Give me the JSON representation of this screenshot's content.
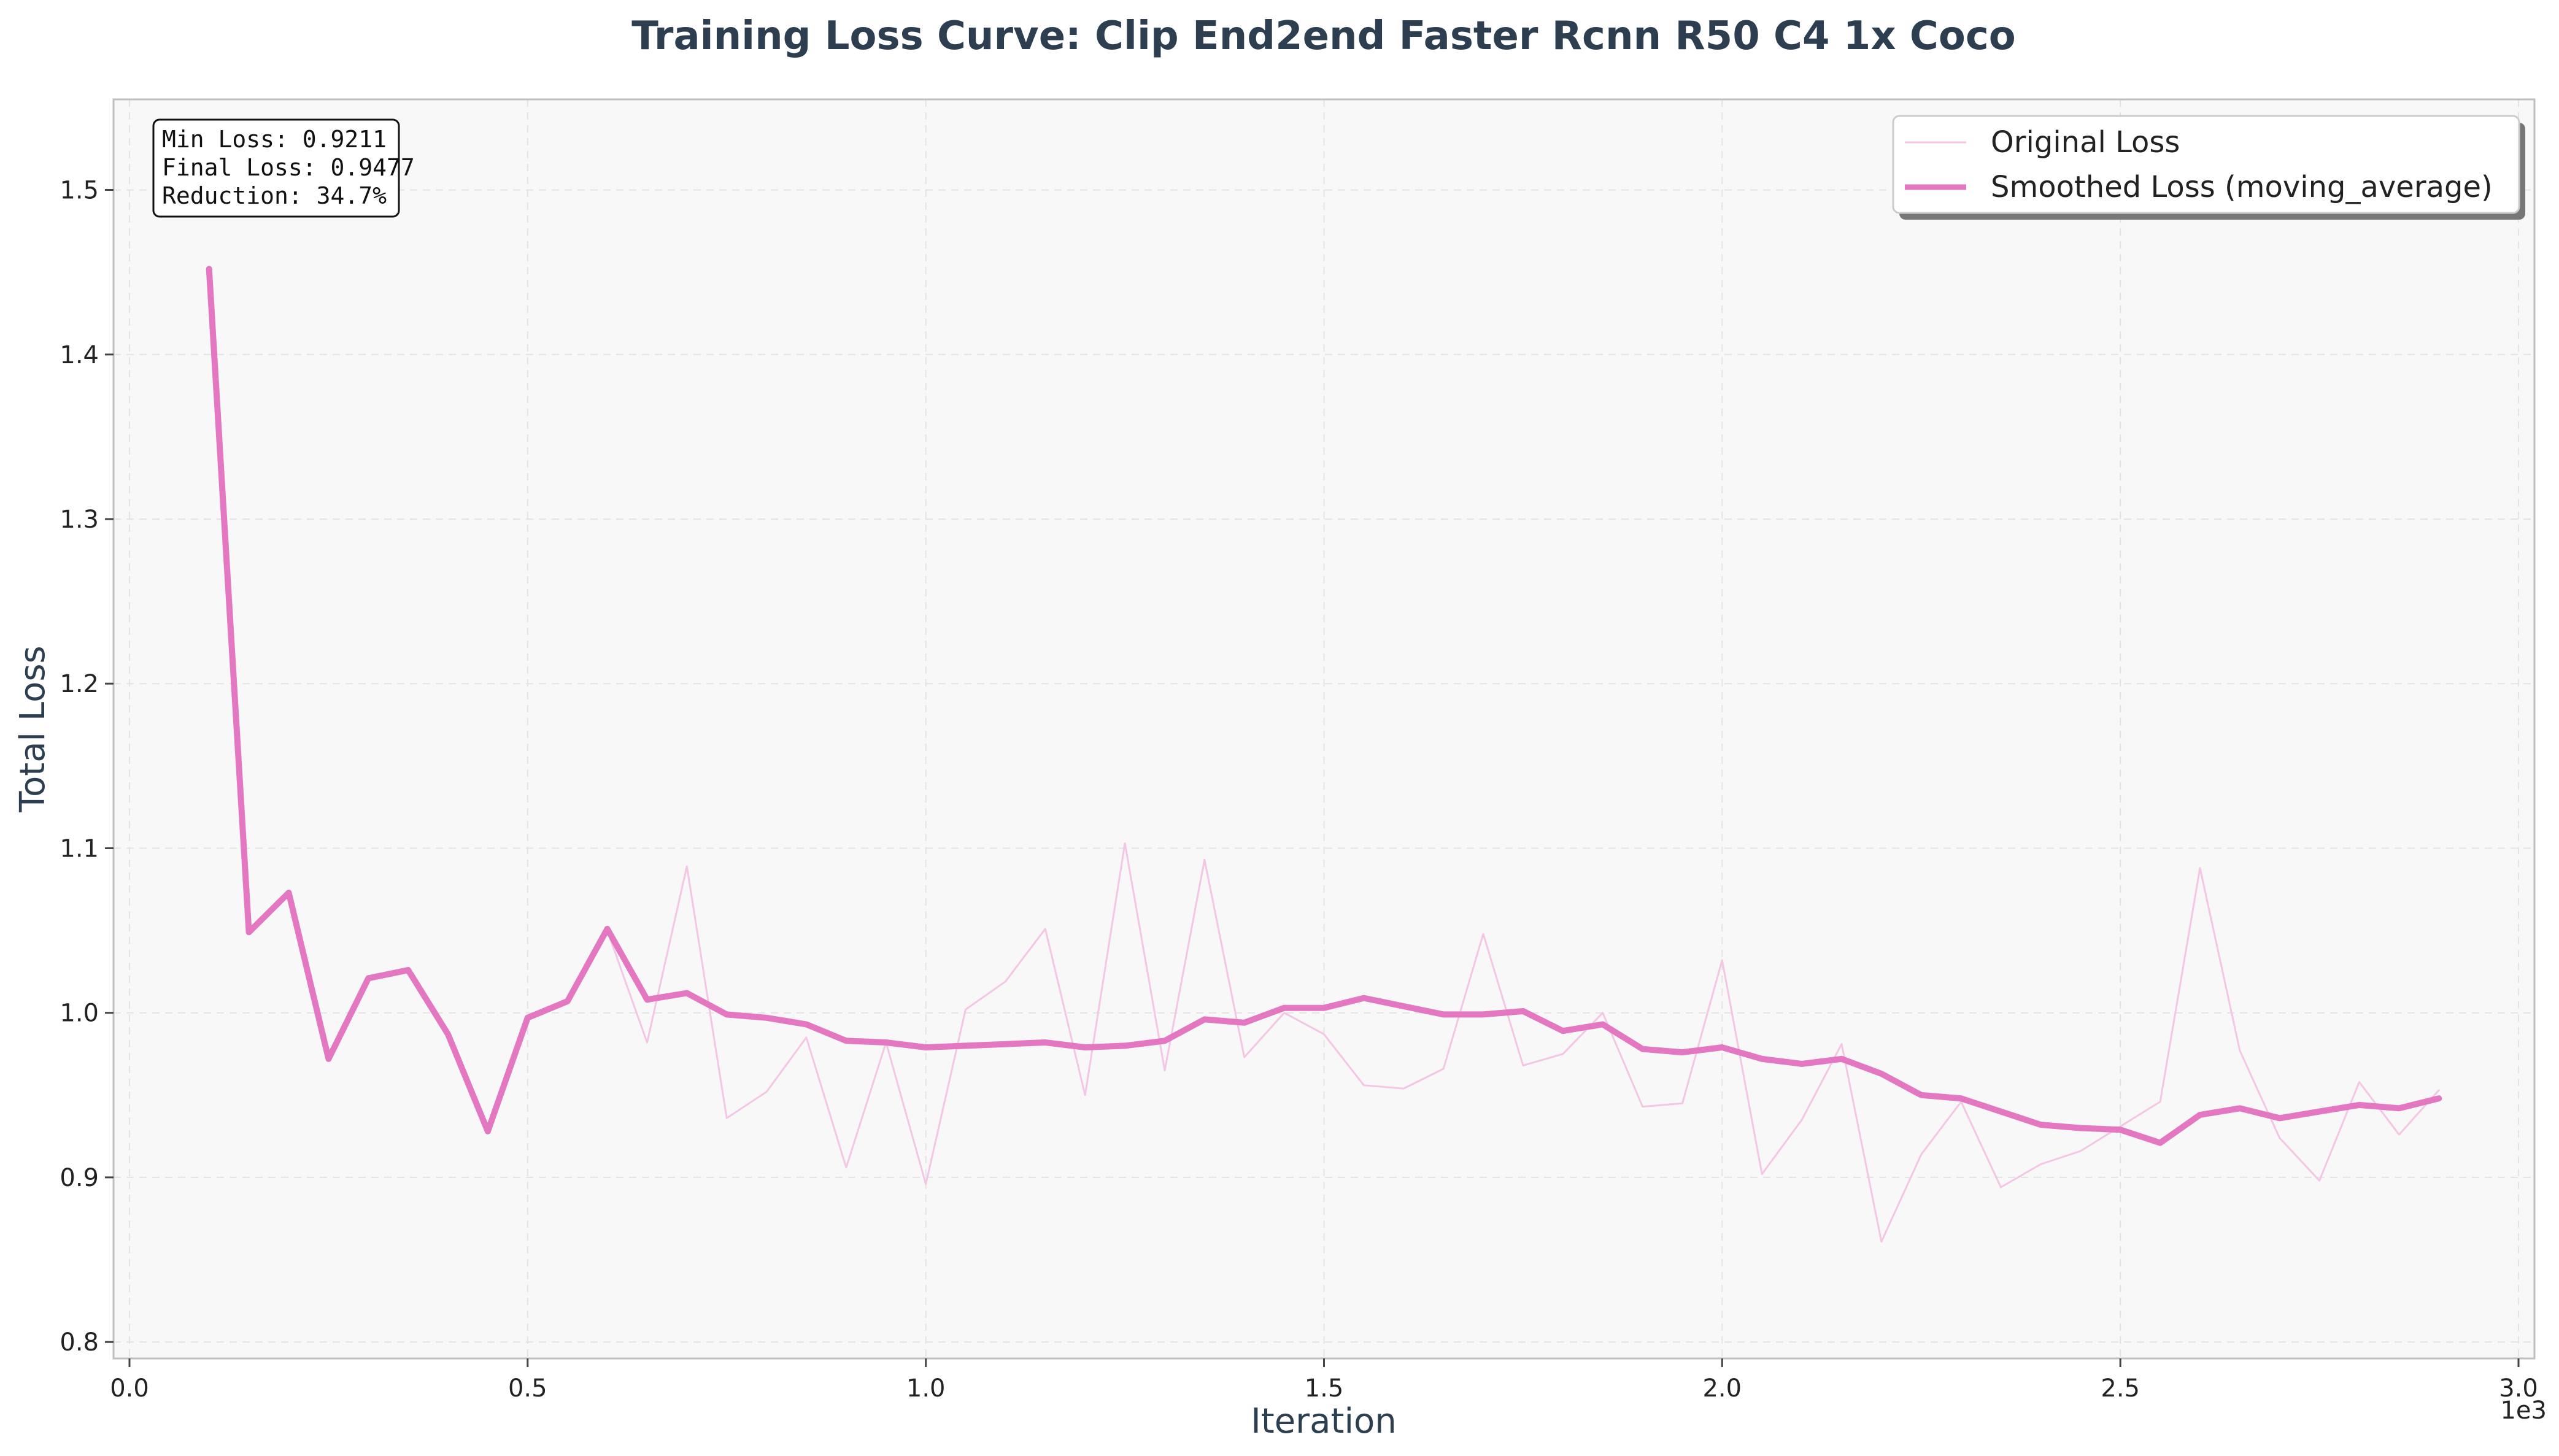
{
  "chart_data": {
    "type": "line",
    "title": "Training Loss Curve: Clip End2end Faster Rcnn R50 C4 1x Coco",
    "xlabel": "Iteration",
    "ylabel": "Total Loss",
    "x_offset_label": "1e3",
    "xlim": [
      -20,
      3020
    ],
    "ylim": [
      0.79,
      1.555
    ],
    "x_ticks": [
      0,
      500,
      1000,
      1500,
      2000,
      2500,
      3000
    ],
    "x_tick_labels": [
      "0.0",
      "0.5",
      "1.0",
      "1.5",
      "2.0",
      "2.5",
      "3.0"
    ],
    "y_ticks": [
      0.8,
      0.9,
      1.0,
      1.1,
      1.2,
      1.3,
      1.4,
      1.5
    ],
    "y_tick_labels": [
      "0.8",
      "0.9",
      "1.0",
      "1.1",
      "1.2",
      "1.3",
      "1.4",
      "1.5"
    ],
    "grid": true,
    "legend_position": "top-right",
    "annotations": [
      "Min Loss: 0.9211",
      "Final Loss: 0.9477",
      "Reduction: 34.7%"
    ],
    "x": [
      100,
      150,
      200,
      250,
      300,
      350,
      400,
      450,
      500,
      550,
      600,
      650,
      700,
      750,
      800,
      850,
      900,
      950,
      1000,
      1050,
      1100,
      1150,
      1200,
      1250,
      1300,
      1350,
      1400,
      1450,
      1500,
      1550,
      1600,
      1650,
      1700,
      1750,
      1800,
      1850,
      1900,
      1950,
      2000,
      2050,
      2100,
      2150,
      2200,
      2250,
      2300,
      2350,
      2400,
      2450,
      2500,
      2550,
      2600,
      2650,
      2700,
      2750,
      2800,
      2850,
      2900
    ],
    "series": [
      {
        "name": "Original Loss",
        "color": "#f3c6e3",
        "values": [
          1.452,
          1.049,
          1.073,
          0.972,
          1.021,
          1.026,
          0.987,
          0.928,
          0.997,
          1.007,
          1.05,
          0.982,
          1.089,
          0.936,
          0.952,
          0.985,
          0.906,
          0.982,
          0.896,
          1.002,
          1.019,
          1.051,
          0.95,
          1.103,
          0.965,
          1.093,
          0.973,
          1.0,
          0.987,
          0.956,
          0.954,
          0.966,
          1.048,
          0.968,
          0.975,
          1.0,
          0.943,
          0.945,
          1.032,
          0.902,
          0.935,
          0.981,
          0.861,
          0.914,
          0.946,
          0.894,
          0.908,
          0.916,
          0.931,
          0.946,
          1.088,
          0.977,
          0.924,
          0.898,
          0.958,
          0.926,
          0.953
        ]
      },
      {
        "name": "Smoothed Loss (moving_average)",
        "color": "#e377c2",
        "values": [
          1.452,
          1.049,
          1.073,
          0.972,
          1.021,
          1.026,
          0.987,
          0.928,
          0.997,
          1.007,
          1.051,
          1.008,
          1.012,
          0.999,
          0.997,
          0.993,
          0.983,
          0.982,
          0.979,
          0.98,
          0.981,
          0.982,
          0.979,
          0.98,
          0.983,
          0.996,
          0.994,
          1.003,
          1.003,
          1.009,
          1.004,
          0.999,
          0.999,
          1.001,
          0.989,
          0.993,
          0.978,
          0.976,
          0.979,
          0.972,
          0.969,
          0.972,
          0.963,
          0.95,
          0.948,
          0.94,
          0.932,
          0.93,
          0.929,
          0.921,
          0.938,
          0.942,
          0.936,
          0.94,
          0.944,
          0.942,
          0.948
        ]
      }
    ]
  }
}
